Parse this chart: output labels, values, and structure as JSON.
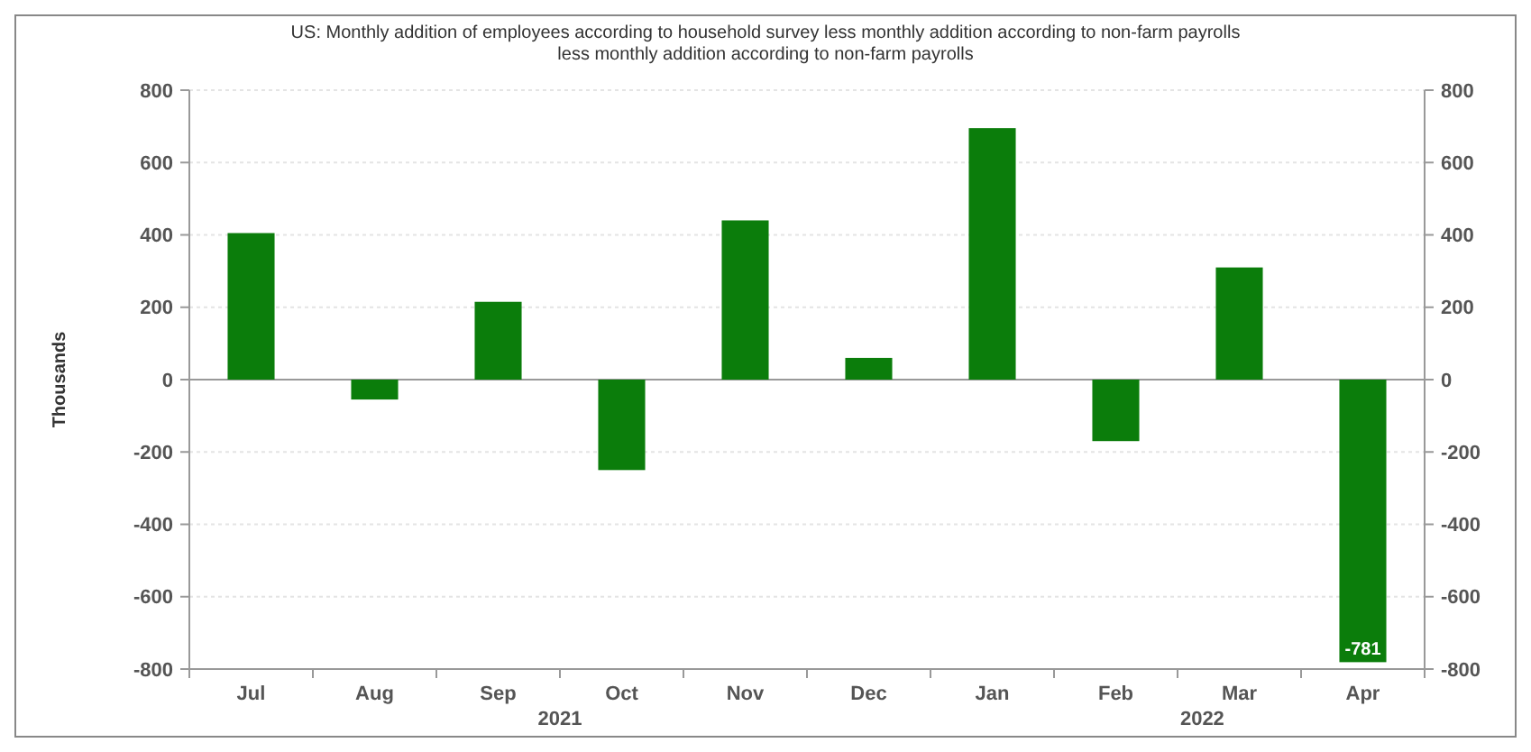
{
  "chart_data": {
    "type": "bar",
    "title": "US: Monthly addition of employees according to household survey less monthly addition according to non-farm payrolls",
    "subtitle": "less monthly addition according to non-farm payrolls",
    "ylabel": "Thousands",
    "categories": [
      "Jul",
      "Aug",
      "Sep",
      "Oct",
      "Nov",
      "Dec",
      "Jan",
      "Feb",
      "Mar",
      "Apr"
    ],
    "values": [
      405,
      -55,
      215,
      -250,
      440,
      60,
      695,
      -170,
      310,
      -781
    ],
    "value_labels": [
      null,
      null,
      null,
      null,
      null,
      null,
      null,
      null,
      null,
      "-781"
    ],
    "color": "#0b7d0b",
    "ylim": [
      -800,
      800
    ],
    "yticks": [
      -800,
      -600,
      -400,
      -200,
      0,
      200,
      400,
      600,
      800
    ],
    "y2lim": [
      -800,
      800
    ],
    "y2ticks": [
      -800,
      -600,
      -400,
      -200,
      0,
      200,
      400,
      600,
      800
    ],
    "annotations": [
      "2021",
      "2022"
    ],
    "grid": "y"
  }
}
